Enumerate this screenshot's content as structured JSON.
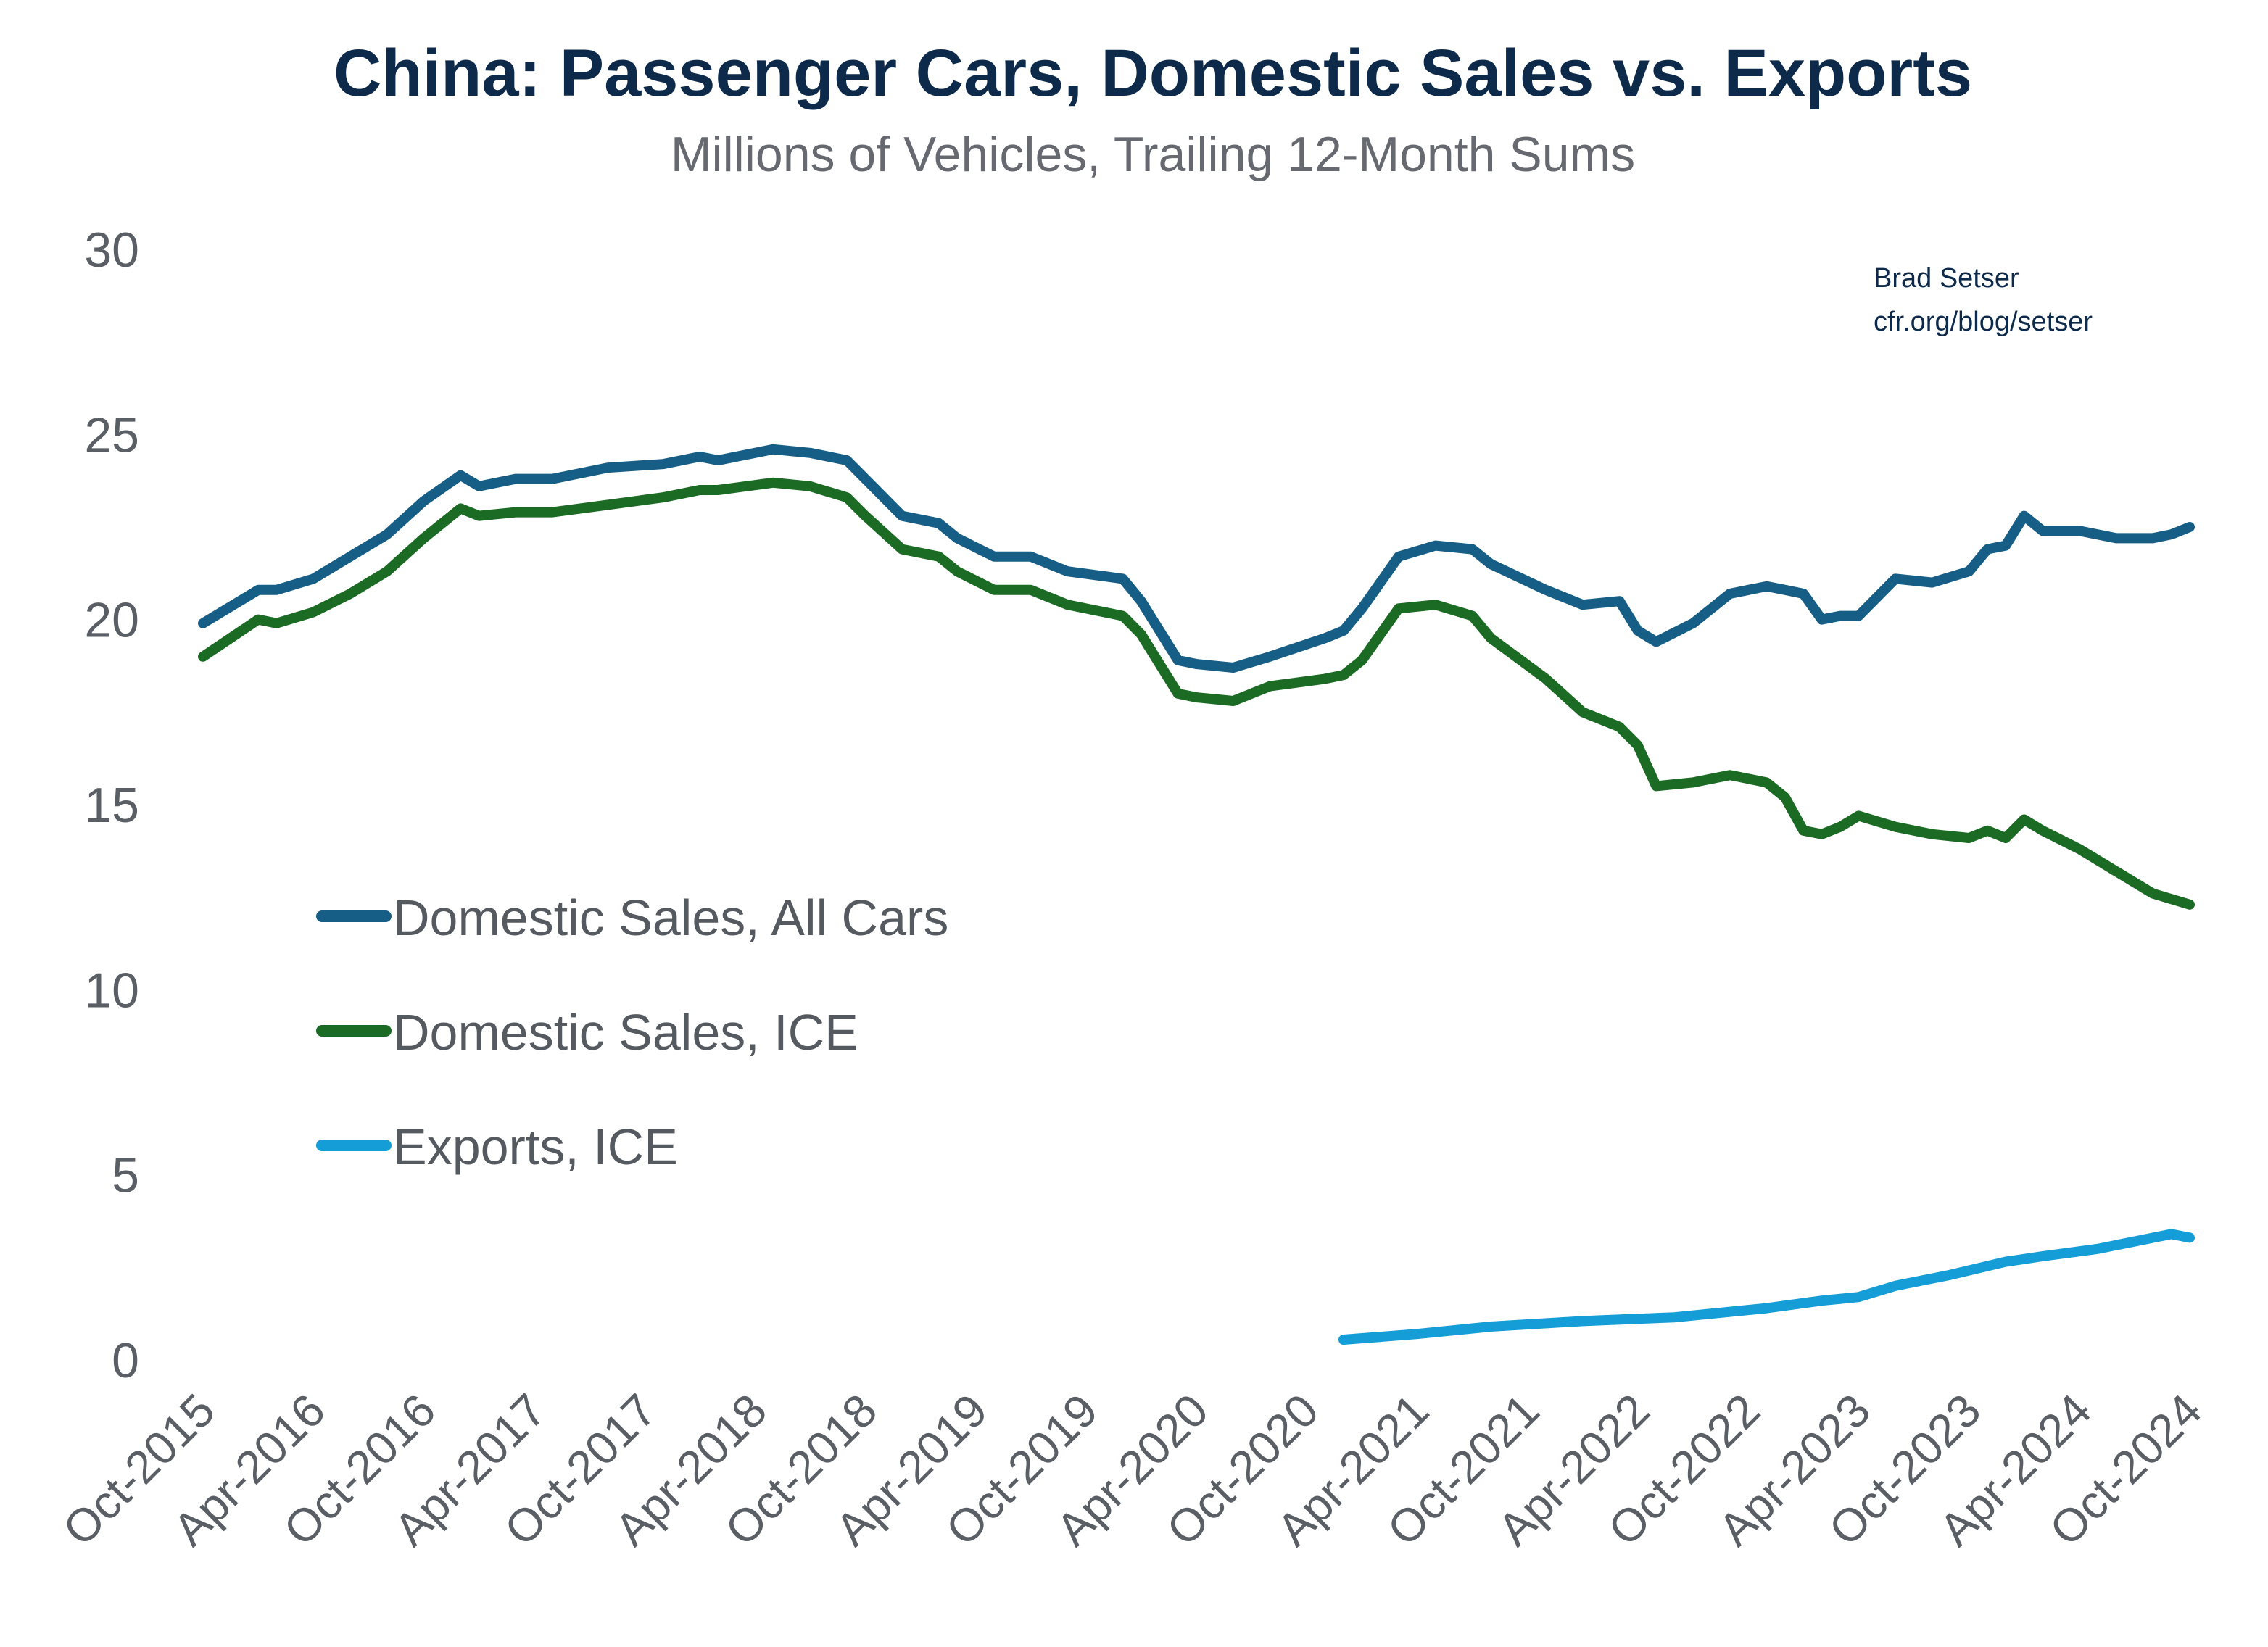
{
  "chart_data": {
    "type": "line",
    "title": "China: Passenger Cars, Domestic Sales vs. Exports",
    "subtitle": "Millions of Vehicles, Trailing 12-Month Sums",
    "source_note": [
      "Brad Setser",
      "cfr.org/blog/setser"
    ],
    "xlabel": "",
    "ylabel": "",
    "ylim": [
      0,
      30
    ],
    "yticks": [
      0,
      5,
      10,
      15,
      20,
      25,
      30
    ],
    "xlim": [
      "2015-10",
      "2024-10"
    ],
    "xtick_labels": [
      "Oct-2015",
      "Apr-2016",
      "Oct-2016",
      "Apr-2017",
      "Oct-2017",
      "Apr-2018",
      "Oct-2018",
      "Apr-2019",
      "Oct-2019",
      "Apr-2020",
      "Oct-2020",
      "Apr-2021",
      "Oct-2021",
      "Apr-2022",
      "Oct-2022",
      "Apr-2023",
      "Oct-2023",
      "Apr-2024",
      "Oct-2024"
    ],
    "grid": false,
    "legend_placement": "center-left",
    "series": [
      {
        "name": "Domestic Sales, All Cars",
        "color": "#175e86",
        "points": [
          [
            "2015-10",
            19.9
          ],
          [
            "2016-01",
            20.8
          ],
          [
            "2016-02",
            20.8
          ],
          [
            "2016-04",
            21.1
          ],
          [
            "2016-06",
            21.7
          ],
          [
            "2016-08",
            22.3
          ],
          [
            "2016-10",
            23.2
          ],
          [
            "2016-12",
            23.9
          ],
          [
            "2017-01",
            23.6
          ],
          [
            "2017-03",
            23.8
          ],
          [
            "2017-05",
            23.8
          ],
          [
            "2017-08",
            24.1
          ],
          [
            "2017-11",
            24.2
          ],
          [
            "2018-01",
            24.4
          ],
          [
            "2018-02",
            24.3
          ],
          [
            "2018-05",
            24.6
          ],
          [
            "2018-07",
            24.5
          ],
          [
            "2018-09",
            24.3
          ],
          [
            "2018-10",
            23.8
          ],
          [
            "2018-12",
            22.8
          ],
          [
            "2019-02",
            22.6
          ],
          [
            "2019-03",
            22.2
          ],
          [
            "2019-05",
            21.7
          ],
          [
            "2019-07",
            21.7
          ],
          [
            "2019-09",
            21.3
          ],
          [
            "2019-12",
            21.1
          ],
          [
            "2020-01",
            20.5
          ],
          [
            "2020-03",
            18.9
          ],
          [
            "2020-04",
            18.8
          ],
          [
            "2020-06",
            18.7
          ],
          [
            "2020-08",
            19.0
          ],
          [
            "2020-11",
            19.5
          ],
          [
            "2020-12",
            19.7
          ],
          [
            "2021-01",
            20.3
          ],
          [
            "2021-03",
            21.7
          ],
          [
            "2021-05",
            22.0
          ],
          [
            "2021-07",
            21.9
          ],
          [
            "2021-08",
            21.5
          ],
          [
            "2021-11",
            20.8
          ],
          [
            "2022-01",
            20.4
          ],
          [
            "2022-03",
            20.5
          ],
          [
            "2022-04",
            19.7
          ],
          [
            "2022-05",
            19.4
          ],
          [
            "2022-07",
            19.9
          ],
          [
            "2022-09",
            20.7
          ],
          [
            "2022-11",
            20.9
          ],
          [
            "2022-12",
            20.8
          ],
          [
            "2023-01",
            20.7
          ],
          [
            "2023-02",
            20.0
          ],
          [
            "2023-03",
            20.1
          ],
          [
            "2023-04",
            20.1
          ],
          [
            "2023-06",
            21.1
          ],
          [
            "2023-08",
            21.0
          ],
          [
            "2023-10",
            21.3
          ],
          [
            "2023-11",
            21.9
          ],
          [
            "2023-12",
            22.0
          ],
          [
            "2024-01",
            22.8
          ],
          [
            "2024-02",
            22.4
          ],
          [
            "2024-04",
            22.4
          ],
          [
            "2024-06",
            22.2
          ],
          [
            "2024-08",
            22.2
          ],
          [
            "2024-09",
            22.3
          ],
          [
            "2024-10",
            22.5
          ]
        ]
      },
      {
        "name": "Domestic Sales, ICE",
        "color": "#1b6b24",
        "points": [
          [
            "2015-10",
            19.0
          ],
          [
            "2016-01",
            20.0
          ],
          [
            "2016-02",
            19.9
          ],
          [
            "2016-04",
            20.2
          ],
          [
            "2016-06",
            20.7
          ],
          [
            "2016-08",
            21.3
          ],
          [
            "2016-10",
            22.2
          ],
          [
            "2016-12",
            23.0
          ],
          [
            "2017-01",
            22.8
          ],
          [
            "2017-03",
            22.9
          ],
          [
            "2017-05",
            22.9
          ],
          [
            "2017-08",
            23.1
          ],
          [
            "2017-11",
            23.3
          ],
          [
            "2018-01",
            23.5
          ],
          [
            "2018-02",
            23.5
          ],
          [
            "2018-05",
            23.7
          ],
          [
            "2018-07",
            23.6
          ],
          [
            "2018-09",
            23.3
          ],
          [
            "2018-10",
            22.8
          ],
          [
            "2018-12",
            21.9
          ],
          [
            "2019-02",
            21.7
          ],
          [
            "2019-03",
            21.3
          ],
          [
            "2019-05",
            20.8
          ],
          [
            "2019-07",
            20.8
          ],
          [
            "2019-09",
            20.4
          ],
          [
            "2019-12",
            20.1
          ],
          [
            "2020-01",
            19.6
          ],
          [
            "2020-03",
            18.0
          ],
          [
            "2020-04",
            17.9
          ],
          [
            "2020-06",
            17.8
          ],
          [
            "2020-08",
            18.2
          ],
          [
            "2020-11",
            18.4
          ],
          [
            "2020-12",
            18.5
          ],
          [
            "2021-01",
            18.9
          ],
          [
            "2021-03",
            20.3
          ],
          [
            "2021-05",
            20.4
          ],
          [
            "2021-07",
            20.1
          ],
          [
            "2021-08",
            19.5
          ],
          [
            "2021-11",
            18.4
          ],
          [
            "2022-01",
            17.5
          ],
          [
            "2022-03",
            17.1
          ],
          [
            "2022-04",
            16.6
          ],
          [
            "2022-05",
            15.5
          ],
          [
            "2022-07",
            15.6
          ],
          [
            "2022-09",
            15.8
          ],
          [
            "2022-11",
            15.6
          ],
          [
            "2022-12",
            15.2
          ],
          [
            "2023-01",
            14.3
          ],
          [
            "2023-02",
            14.2
          ],
          [
            "2023-03",
            14.4
          ],
          [
            "2023-04",
            14.7
          ],
          [
            "2023-06",
            14.4
          ],
          [
            "2023-08",
            14.2
          ],
          [
            "2023-10",
            14.1
          ],
          [
            "2023-11",
            14.3
          ],
          [
            "2023-12",
            14.1
          ],
          [
            "2024-01",
            14.6
          ],
          [
            "2024-02",
            14.3
          ],
          [
            "2024-04",
            13.8
          ],
          [
            "2024-06",
            13.2
          ],
          [
            "2024-08",
            12.6
          ],
          [
            "2024-10",
            12.3
          ]
        ]
      },
      {
        "name": "Exports, ICE",
        "color": "#149dd6",
        "points": [
          [
            "2020-12",
            0.55
          ],
          [
            "2021-04",
            0.7
          ],
          [
            "2021-08",
            0.9
          ],
          [
            "2022-01",
            1.05
          ],
          [
            "2022-06",
            1.15
          ],
          [
            "2022-11",
            1.4
          ],
          [
            "2023-02",
            1.6
          ],
          [
            "2023-04",
            1.7
          ],
          [
            "2023-06",
            2.0
          ],
          [
            "2023-09",
            2.3
          ],
          [
            "2023-12",
            2.65
          ],
          [
            "2024-02",
            2.8
          ],
          [
            "2024-05",
            3.0
          ],
          [
            "2024-07",
            3.2
          ],
          [
            "2024-09",
            3.4
          ],
          [
            "2024-10",
            3.3
          ]
        ]
      }
    ]
  }
}
